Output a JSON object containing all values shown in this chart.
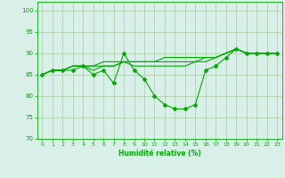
{
  "xlabel": "Humidité relative (%)",
  "bg_color": "#d8f0e8",
  "line_color": "#00aa00",
  "grid_color": "#aaccaa",
  "xlim": [
    -0.5,
    23.5
  ],
  "ylim": [
    70,
    102
  ],
  "yticks": [
    70,
    75,
    80,
    85,
    90,
    95,
    100
  ],
  "xticks": [
    0,
    1,
    2,
    3,
    4,
    5,
    6,
    7,
    8,
    9,
    10,
    11,
    12,
    13,
    14,
    15,
    16,
    17,
    18,
    19,
    20,
    21,
    22,
    23
  ],
  "series1": [
    85,
    86,
    86,
    86,
    87,
    85,
    86,
    83,
    90,
    86,
    84,
    80,
    78,
    77,
    77,
    78,
    86,
    87,
    89,
    91,
    90,
    90,
    90,
    90
  ],
  "series2": [
    85,
    86,
    86,
    87,
    87,
    86,
    87,
    87,
    88,
    87,
    87,
    87,
    87,
    87,
    87,
    88,
    88,
    89,
    90,
    91,
    90,
    90,
    90,
    90
  ],
  "series3": [
    85,
    86,
    86,
    87,
    87,
    87,
    87,
    87,
    88,
    88,
    88,
    88,
    88,
    88,
    88,
    88,
    89,
    89,
    90,
    91,
    90,
    90,
    90,
    90
  ],
  "series4": [
    85,
    86,
    86,
    87,
    87,
    87,
    88,
    88,
    88,
    88,
    88,
    88,
    89,
    89,
    89,
    89,
    89,
    89,
    90,
    91,
    90,
    90,
    90,
    90
  ]
}
